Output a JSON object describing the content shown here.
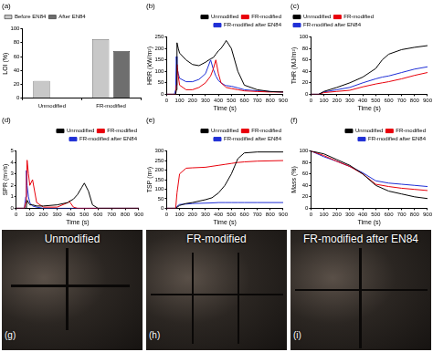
{
  "chart_data": [
    {
      "type": "bar",
      "title": "(a)",
      "y_label": "LOI (%)",
      "categories": [
        "Unmodified",
        "FR-modified"
      ],
      "series": [
        {
          "name": "Before EN84",
          "color": "#c8c8c8",
          "values": [
            25,
            85
          ]
        },
        {
          "name": "After EN84",
          "color": "#6e6e6e",
          "values": [
            null,
            68
          ]
        }
      ],
      "ylim": [
        0,
        100
      ],
      "yticks": [
        0,
        20,
        40,
        60,
        80,
        100
      ],
      "grid": false,
      "legend": "upper left"
    },
    {
      "type": "line",
      "title": "(b)",
      "x_label": "Time (s)",
      "y_label": "HRR (kW/m²)",
      "x": [
        0,
        60,
        70,
        75,
        80,
        90,
        100,
        150,
        200,
        250,
        300,
        340,
        360,
        380,
        400,
        420,
        450,
        460,
        500,
        550,
        600,
        700,
        800,
        900
      ],
      "series": [
        {
          "name": "Unmodified",
          "color": "#000000",
          "values": [
            0,
            0,
            0,
            20,
            225,
            200,
            180,
            150,
            130,
            125,
            140,
            155,
            160,
            175,
            190,
            200,
            225,
            235,
            200,
            100,
            40,
            20,
            12,
            10
          ]
        },
        {
          "name": "FR-modified",
          "color": "#e8000b",
          "values": [
            0,
            0,
            0,
            40,
            130,
            80,
            40,
            20,
            20,
            30,
            50,
            80,
            110,
            150,
            90,
            50,
            35,
            30,
            25,
            20,
            15,
            12,
            10,
            10
          ]
        },
        {
          "name": "FR-modified after EN84",
          "color": "#1f2fd6",
          "values": [
            0,
            0,
            20,
            165,
            120,
            90,
            70,
            55,
            55,
            65,
            90,
            150,
            110,
            80,
            60,
            50,
            40,
            38,
            35,
            28,
            20,
            15,
            12,
            10
          ]
        }
      ],
      "xlim": [
        0,
        900
      ],
      "xticks": [
        0,
        100,
        200,
        300,
        400,
        500,
        600,
        700,
        800,
        900
      ],
      "ylim": [
        0,
        250
      ],
      "yticks": [
        0,
        50,
        100,
        150,
        200,
        250
      ],
      "grid": false,
      "legend": "upper right"
    },
    {
      "type": "line",
      "title": "(c)",
      "x_label": "Time (s)",
      "y_label": "THR (MJ/m²)",
      "x": [
        0,
        60,
        100,
        200,
        300,
        400,
        500,
        550,
        600,
        700,
        800,
        900
      ],
      "series": [
        {
          "name": "Unmodified",
          "color": "#000000",
          "values": [
            0,
            0,
            5,
            12,
            20,
            30,
            45,
            60,
            70,
            78,
            82,
            85
          ]
        },
        {
          "name": "FR-modified",
          "color": "#e8000b",
          "values": [
            0,
            0,
            3,
            5,
            7,
            13,
            18,
            20,
            22,
            27,
            33,
            38
          ]
        },
        {
          "name": "FR-modified after EN84",
          "color": "#1f2fd6",
          "values": [
            0,
            0,
            4,
            8,
            12,
            20,
            27,
            30,
            32,
            38,
            44,
            48
          ]
        }
      ],
      "xlim": [
        0,
        900
      ],
      "xticks": [
        0,
        100,
        200,
        300,
        400,
        500,
        600,
        700,
        800,
        900
      ],
      "ylim": [
        0,
        100
      ],
      "yticks": [
        0,
        20,
        40,
        60,
        80,
        100
      ],
      "grid": false,
      "legend": "upper left"
    },
    {
      "type": "line",
      "title": "(d)",
      "x_label": "Time (s)",
      "y_label": "SPR (m²/s)",
      "x": [
        0,
        60,
        70,
        75,
        80,
        90,
        100,
        120,
        150,
        200,
        300,
        380,
        390,
        420,
        450,
        480,
        500,
        530,
        560,
        600,
        900
      ],
      "series": [
        {
          "name": "Unmodified",
          "color": "#000000",
          "values": [
            0,
            0,
            0,
            0.2,
            0.7,
            0.5,
            0.3,
            0.3,
            0.2,
            0.2,
            0.3,
            0.5,
            0.6,
            0.8,
            1.2,
            1.8,
            2.2,
            1.5,
            0.3,
            0,
            0
          ]
        },
        {
          "name": "FR-modified",
          "color": "#e8000b",
          "values": [
            0,
            0,
            0.5,
            2,
            4.2,
            3,
            2,
            2.5,
            0.5,
            0.1,
            0.1,
            0.5,
            0.6,
            0.1,
            0,
            0,
            0,
            0,
            0,
            0,
            0
          ]
        },
        {
          "name": "FR-modified after EN84",
          "color": "#1f2fd6",
          "values": [
            0,
            0,
            1,
            3.3,
            2,
            1,
            0.5,
            0.2,
            0.1,
            0,
            0,
            0,
            0,
            0,
            0,
            0,
            0,
            0,
            0,
            0,
            0
          ]
        }
      ],
      "xlim": [
        0,
        900
      ],
      "xticks": [
        0,
        100,
        200,
        300,
        400,
        500,
        600,
        700,
        800,
        900
      ],
      "ylim": [
        0,
        5
      ],
      "yticks": [
        0,
        1,
        2,
        3,
        4,
        5
      ],
      "grid": false,
      "legend": "upper right"
    },
    {
      "type": "line",
      "title": "(e)",
      "x_label": "Time (s)",
      "y_label": "TSP (m²)",
      "x": [
        0,
        70,
        80,
        100,
        150,
        200,
        300,
        350,
        400,
        450,
        500,
        550,
        600,
        700,
        900
      ],
      "series": [
        {
          "name": "Unmodified",
          "color": "#000000",
          "values": [
            0,
            0,
            5,
            15,
            25,
            30,
            45,
            55,
            80,
            120,
            180,
            260,
            290,
            295,
            295
          ]
        },
        {
          "name": "FR-modified",
          "color": "#e8000b",
          "values": [
            0,
            0,
            80,
            180,
            210,
            212,
            215,
            220,
            225,
            230,
            235,
            240,
            243,
            247,
            250
          ]
        },
        {
          "name": "FR-modified after EN84",
          "color": "#1f2fd6",
          "values": [
            0,
            0,
            10,
            20,
            22,
            25,
            27,
            28,
            30,
            30,
            30,
            30,
            30,
            30,
            30
          ]
        }
      ],
      "xlim": [
        0,
        900
      ],
      "xticks": [
        0,
        100,
        200,
        300,
        400,
        500,
        600,
        700,
        800,
        900
      ],
      "ylim": [
        0,
        300
      ],
      "yticks": [
        0,
        50,
        100,
        150,
        200,
        250,
        300
      ],
      "grid": false,
      "legend": "upper right"
    },
    {
      "type": "line",
      "title": "(f)",
      "x_label": "Time (s)",
      "y_label": "Mass (%)",
      "x": [
        0,
        100,
        200,
        300,
        400,
        500,
        600,
        700,
        800,
        900
      ],
      "series": [
        {
          "name": "Unmodified",
          "color": "#000000",
          "values": [
            100,
            95,
            85,
            75,
            60,
            40,
            30,
            25,
            20,
            17
          ]
        },
        {
          "name": "FR-modified",
          "color": "#e8000b",
          "values": [
            100,
            92,
            82,
            73,
            60,
            42,
            38,
            35,
            33,
            31
          ]
        },
        {
          "name": "FR-modified after EN84",
          "color": "#1f2fd6",
          "values": [
            100,
            90,
            82,
            73,
            62,
            48,
            44,
            42,
            40,
            38
          ]
        }
      ],
      "xlim": [
        0,
        900
      ],
      "xticks": [
        0,
        100,
        200,
        300,
        400,
        500,
        600,
        700,
        800,
        900
      ],
      "ylim": [
        0,
        100
      ],
      "yticks": [
        0,
        20,
        40,
        60,
        80,
        100
      ],
      "grid": false,
      "legend": "upper right"
    }
  ],
  "photos": [
    {
      "panel": "(g)",
      "label": "Unmodified"
    },
    {
      "panel": "(h)",
      "label": "FR-modified"
    },
    {
      "panel": "(i)",
      "label": "FR-modified after EN84"
    }
  ]
}
